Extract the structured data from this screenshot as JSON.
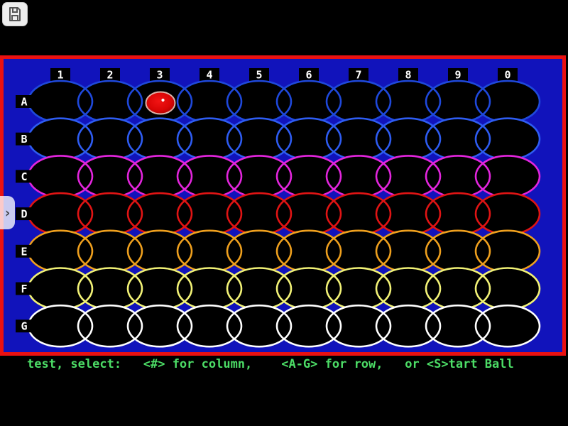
{
  "window": {
    "background": "#000000"
  },
  "overlay_ui": {
    "save_button": {
      "icon": "floppy-disk",
      "color": "#555555"
    },
    "side_toggle": {
      "icon": "chevron-right",
      "glyph": "›"
    }
  },
  "board": {
    "border_color": "#ea1111",
    "background": "#1113bb",
    "label_box_color": "#000000",
    "label_text_color": "#ffffff",
    "columns": [
      "1",
      "2",
      "3",
      "4",
      "5",
      "6",
      "7",
      "8",
      "9",
      "0"
    ],
    "rows": [
      {
        "label": "A",
        "color": "#1f49dc"
      },
      {
        "label": "B",
        "color": "#2e5cf2"
      },
      {
        "label": "C",
        "color": "#e325dd"
      },
      {
        "label": "D",
        "color": "#e01414"
      },
      {
        "label": "E",
        "color": "#efa01e"
      },
      {
        "label": "F",
        "color": "#f2f276"
      },
      {
        "label": "G",
        "color": "#ffffff"
      }
    ],
    "ball": {
      "row": "A",
      "column": "3",
      "fill_center": "#f21414",
      "fill_edge": "#8f0000",
      "outline": "#dcb2a8",
      "highlight": "#ffffff"
    }
  },
  "status_bar": {
    "prompt": "test, select:   <#> for column,    <A-G> for row,   or <S>tart Ball",
    "color": "#4cdc66"
  }
}
